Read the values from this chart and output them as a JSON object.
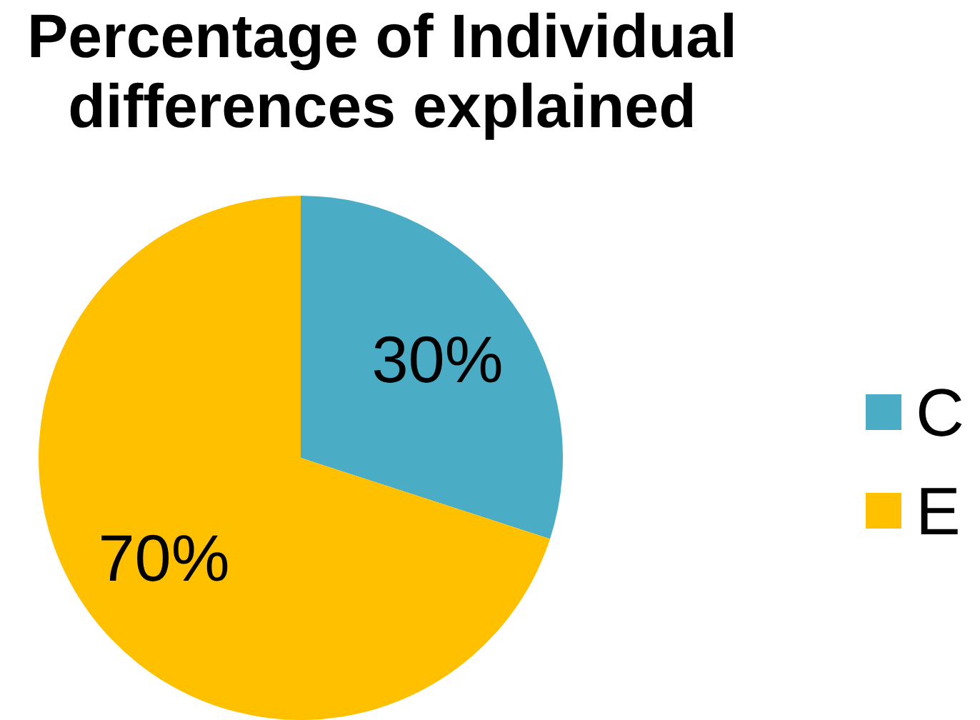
{
  "chart_data": {
    "type": "pie",
    "title": "Percentage of Individual differences explained",
    "categories": [
      "C",
      "E"
    ],
    "values": [
      30,
      70
    ],
    "colors": [
      "#4bacc6",
      "#ffc000"
    ],
    "value_labels": [
      "30%",
      "70%"
    ],
    "legend": "right"
  }
}
